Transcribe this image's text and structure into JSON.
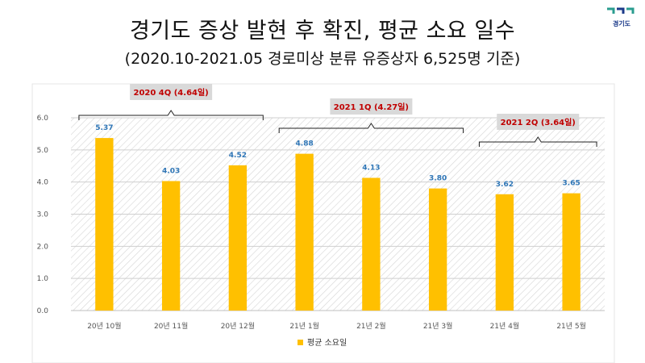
{
  "header": {
    "title": "경기도 증상 발현 후 확진, 평균 소요 일수",
    "subtitle": "(2020.10-2021.05 경로미상 분류 유증상자 6,525명 기준)",
    "logo_text": "경기도"
  },
  "colors": {
    "bar": "#ffc000",
    "data_label": "#2e75b6",
    "annotation": "#c00000",
    "annotation_bg": "#d9d9d9"
  },
  "chart_data": {
    "type": "bar",
    "categories": [
      "20년 10월",
      "20년 11월",
      "20년 12월",
      "21년 1월",
      "21년 2월",
      "21년 3월",
      "21년 4월",
      "21년 5월"
    ],
    "series": [
      {
        "name": "평균 소요일",
        "values": [
          5.37,
          4.03,
          4.52,
          4.88,
          4.13,
          3.8,
          3.62,
          3.65
        ]
      }
    ],
    "data_labels": [
      "5.37",
      "4.03",
      "4.52",
      "4.88",
      "4.13",
      "3.80",
      "3.62",
      "3.65"
    ],
    "ylim": [
      0,
      6
    ],
    "yticks": [
      "0.0",
      "1.0",
      "2.0",
      "3.0",
      "4.0",
      "5.0",
      "6.0"
    ],
    "grid": true,
    "legend_position": "bottom",
    "annotations": [
      {
        "text": "2020 4Q (4.64일)",
        "from": 0,
        "to": 2
      },
      {
        "text": "2021 1Q (4.27일)",
        "from": 3,
        "to": 5
      },
      {
        "text": "2021 2Q (3.64일)",
        "from": 6,
        "to": 7
      }
    ]
  }
}
